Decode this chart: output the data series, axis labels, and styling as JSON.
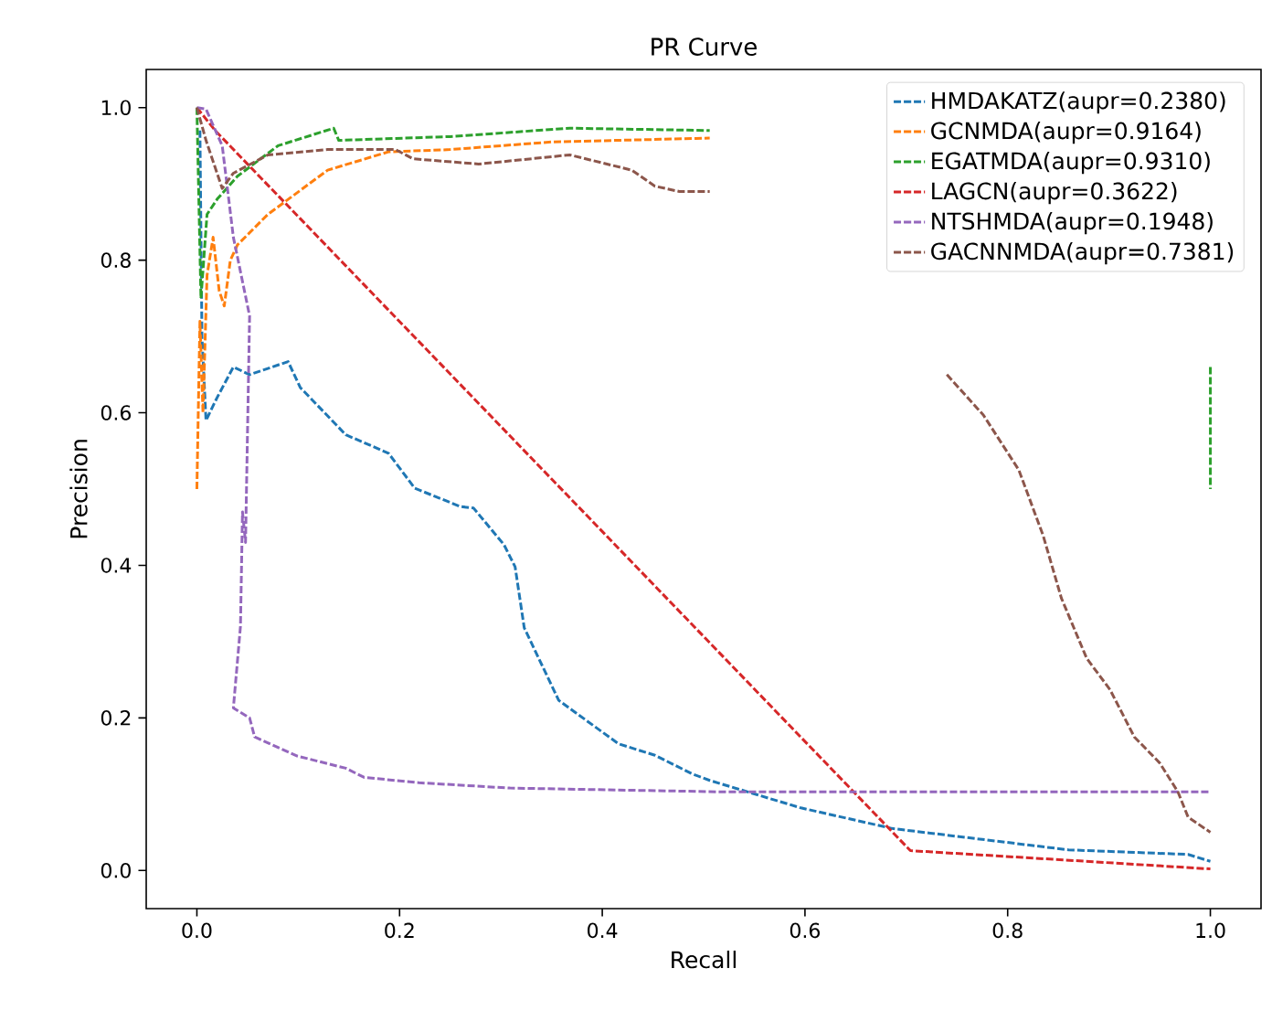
{
  "chart_data": {
    "type": "line",
    "title": "PR Curve",
    "xlabel": "Recall",
    "ylabel": "Precision",
    "xlim": [
      -0.05,
      1.05
    ],
    "ylim": [
      -0.05,
      1.05
    ],
    "xticks": [
      {
        "value": 0,
        "label": "0.0"
      },
      {
        "value": 0.2,
        "label": "0.2"
      },
      {
        "value": 0.4,
        "label": "0.4"
      },
      {
        "value": 0.6,
        "label": "0.6"
      },
      {
        "value": 0.8,
        "label": "0.8"
      },
      {
        "value": 1,
        "label": "1.0"
      }
    ],
    "yticks": [
      {
        "value": 0,
        "label": "0.0"
      },
      {
        "value": 0.2,
        "label": "0.2"
      },
      {
        "value": 0.4,
        "label": "0.4"
      },
      {
        "value": 0.6,
        "label": "0.6"
      },
      {
        "value": 0.8,
        "label": "0.8"
      },
      {
        "value": 1,
        "label": "1.0"
      }
    ],
    "grid": false,
    "legend": "top right",
    "marker": "none",
    "line_style": "dashed",
    "series": [
      {
        "name": "HMDAKATZ(aupr=0.2380)",
        "color": "#1f77b4",
        "x": [
          0.003,
          0.005,
          0.009,
          0.02,
          0.036,
          0.052,
          0.09,
          0.102,
          0.147,
          0.189,
          0.215,
          0.26,
          0.273,
          0.303,
          0.314,
          0.323,
          0.357,
          0.416,
          0.452,
          0.488,
          0.506,
          0.596,
          0.686,
          0.86,
          0.978,
          1.0
        ],
        "values": [
          0.97,
          0.7,
          0.59,
          0.62,
          0.66,
          0.65,
          0.667,
          0.633,
          0.571,
          0.547,
          0.501,
          0.477,
          0.475,
          0.427,
          0.398,
          0.318,
          0.223,
          0.166,
          0.151,
          0.127,
          0.118,
          0.082,
          0.055,
          0.027,
          0.021,
          0.012
        ]
      },
      {
        "name": "GCNMDA(aupr=0.9164)",
        "color": "#ff7f0e",
        "x": [
          0,
          0.003,
          0.006,
          0.01,
          0.016,
          0.022,
          0.027,
          0.033,
          0.04,
          0.07,
          0.129,
          0.189,
          0.25,
          0.35,
          0.506
        ],
        "values": [
          0.5,
          0.72,
          0.6,
          0.78,
          0.83,
          0.76,
          0.74,
          0.8,
          0.82,
          0.86,
          0.918,
          0.942,
          0.945,
          0.955,
          0.96
        ]
      },
      {
        "name": "EGATMDA(aupr=0.9310)",
        "color": "#2ca02c",
        "x": [
          0,
          0.004,
          0.01,
          0.02,
          0.04,
          0.08,
          0.135,
          0.14,
          0.25,
          0.368,
          0.506,
          0.75,
          1.0,
          1.0
        ],
        "values": [
          1.0,
          0.75,
          0.86,
          0.88,
          0.91,
          0.95,
          0.973,
          0.957,
          0.962,
          0.973,
          0.97,
          null,
          0.66,
          0.5
        ]
      },
      {
        "name": "LAGCN(aupr=0.3622)",
        "color": "#d62728",
        "x": [
          0,
          0.018,
          0.704,
          1.0
        ],
        "values": [
          1.0,
          0.97,
          0.026,
          0.002
        ]
      },
      {
        "name": "NTSHMDA(aupr=0.1948)",
        "color": "#9467bd",
        "x": [
          0,
          0.009,
          0.025,
          0.036,
          0.052,
          0.048,
          0.045,
          0.043,
          0.036,
          0.052,
          0.057,
          0.099,
          0.147,
          0.165,
          0.219,
          0.309,
          0.519,
          1.0
        ],
        "values": [
          1.0,
          0.998,
          0.95,
          0.83,
          0.727,
          0.43,
          0.47,
          0.32,
          0.213,
          0.2,
          0.175,
          0.15,
          0.134,
          0.122,
          0.115,
          0.108,
          0.103,
          0.103
        ]
      },
      {
        "name": "GACNNMDA(aupr=0.7381)",
        "color": "#8c564b",
        "x": [
          0,
          0.009,
          0.025,
          0.036,
          0.07,
          0.129,
          0.196,
          0.213,
          0.278,
          0.368,
          0.429,
          0.452,
          0.476,
          0.506,
          0.62,
          0.74,
          0.776,
          0.811,
          0.835,
          0.853,
          0.878,
          0.901,
          0.925,
          0.95,
          0.968,
          0.978,
          1.0
        ],
        "values": [
          1.0,
          0.957,
          0.894,
          0.914,
          0.938,
          0.945,
          0.945,
          0.933,
          0.926,
          0.938,
          0.918,
          0.897,
          0.89,
          0.89,
          null,
          0.65,
          0.597,
          0.525,
          0.439,
          0.357,
          0.278,
          0.237,
          0.175,
          0.141,
          0.103,
          0.07,
          0.05
        ]
      }
    ]
  }
}
